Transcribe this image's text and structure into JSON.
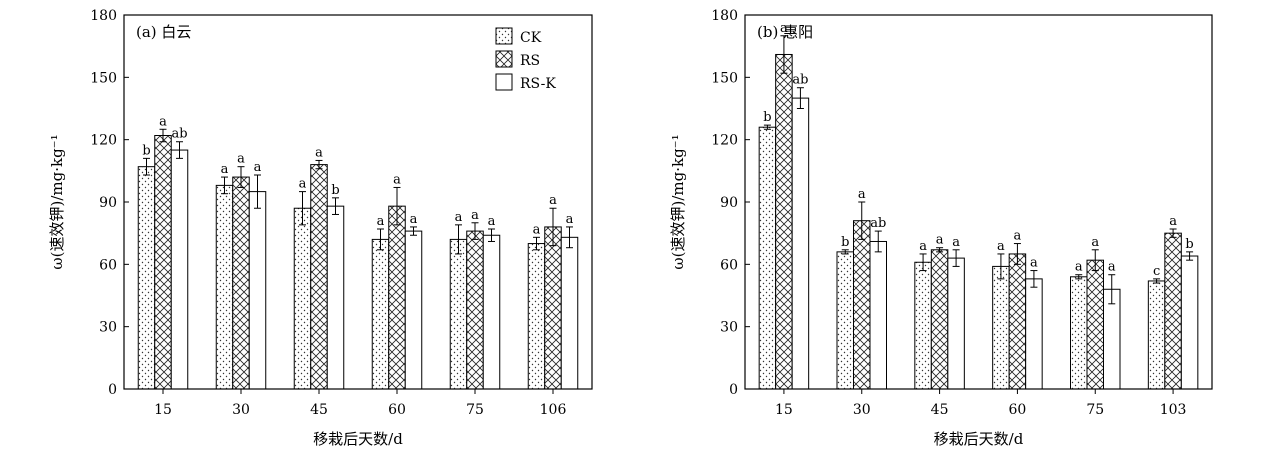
{
  "chart_data": [
    {
      "type": "bar",
      "panel_label": "(a) 白云",
      "xlabel": "移栽后天数/d",
      "ylabel": "ω(速效钾)/mg·kg⁻¹",
      "ylim": [
        0,
        180
      ],
      "yticks": [
        0,
        30,
        60,
        90,
        120,
        150,
        180
      ],
      "categories": [
        "15",
        "30",
        "45",
        "60",
        "75",
        "106"
      ],
      "legend_position": "top-right",
      "series": [
        {
          "name": "CK",
          "values": [
            107,
            98,
            87,
            72,
            72,
            70
          ],
          "errors": [
            4,
            4,
            8,
            5,
            7,
            3
          ],
          "sig": [
            "b",
            "a",
            "a",
            "a",
            "a",
            "a"
          ]
        },
        {
          "name": "RS",
          "values": [
            122,
            102,
            108,
            88,
            76,
            78
          ],
          "errors": [
            3,
            5,
            2,
            9,
            4,
            9
          ],
          "sig": [
            "a",
            "a",
            "a",
            "a",
            "a",
            "a"
          ]
        },
        {
          "name": "RS-K",
          "values": [
            115,
            95,
            88,
            76,
            74,
            73
          ],
          "errors": [
            4,
            8,
            4,
            2,
            3,
            5
          ],
          "sig": [
            "ab",
            "a",
            "b",
            "a",
            "a",
            "a"
          ]
        }
      ]
    },
    {
      "type": "bar",
      "panel_label": "(b) 惠阳",
      "xlabel": "移栽后天数/d",
      "ylabel": "ω(速效钾)/mg·kg⁻¹",
      "ylim": [
        0,
        180
      ],
      "yticks": [
        0,
        30,
        60,
        90,
        120,
        150,
        180
      ],
      "categories": [
        "15",
        "30",
        "45",
        "60",
        "75",
        "103"
      ],
      "series": [
        {
          "name": "CK",
          "values": [
            126,
            66,
            61,
            59,
            54,
            52
          ],
          "errors": [
            1,
            1,
            4,
            6,
            1,
            1
          ],
          "sig": [
            "b",
            "b",
            "a",
            "a",
            "a",
            "c"
          ]
        },
        {
          "name": "RS",
          "values": [
            161,
            81,
            67,
            65,
            62,
            75
          ],
          "errors": [
            9,
            9,
            1,
            5,
            5,
            2
          ],
          "sig": [
            "a",
            "a",
            "a",
            "a",
            "a",
            "a"
          ]
        },
        {
          "name": "RS-K",
          "values": [
            140,
            71,
            63,
            53,
            48,
            64
          ],
          "errors": [
            5,
            5,
            4,
            4,
            7,
            2
          ],
          "sig": [
            "ab",
            "ab",
            "a",
            "a",
            "a",
            "b"
          ]
        }
      ]
    }
  ],
  "colors": {
    "axis": "#000000",
    "bar_fill": "#ffffff"
  },
  "patterns": {
    "CK": "dots",
    "RS": "crosshatch",
    "RS-K": "plain"
  }
}
